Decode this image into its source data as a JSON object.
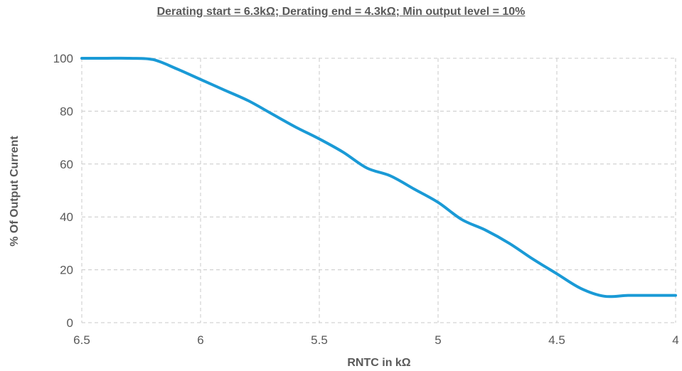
{
  "chart_data": {
    "type": "line",
    "title": "Derating start = 6.3kΩ; Derating end = 4.3kΩ; Min output level = 10%",
    "xlabel": "RNTC in kΩ",
    "ylabel": "% Of Output Current",
    "xlim": [
      6.5,
      4
    ],
    "ylim": [
      0,
      100
    ],
    "x_reversed": true,
    "x_ticks": [
      "6.5",
      "6",
      "5.5",
      "5",
      "4.5",
      "4"
    ],
    "y_ticks": [
      "0",
      "20",
      "40",
      "60",
      "80",
      "100"
    ],
    "grid": true,
    "legend": "none",
    "series": [
      {
        "color": "#1a9ad6",
        "x": [
          6.5,
          6.4,
          6.3,
          6.2,
          6.1,
          6.0,
          5.9,
          5.8,
          5.7,
          5.6,
          5.5,
          5.4,
          5.3,
          5.2,
          5.1,
          5.0,
          4.9,
          4.8,
          4.7,
          4.6,
          4.5,
          4.4,
          4.3,
          4.2,
          4.1,
          4.0
        ],
        "y": [
          100,
          100,
          100,
          99.5,
          96,
          92,
          88,
          84,
          79,
          74,
          69.5,
          64.5,
          58.5,
          55.5,
          50.5,
          45.5,
          39,
          35,
          30,
          24,
          18.5,
          13,
          10,
          10.3,
          10.3,
          10.3
        ]
      }
    ]
  }
}
